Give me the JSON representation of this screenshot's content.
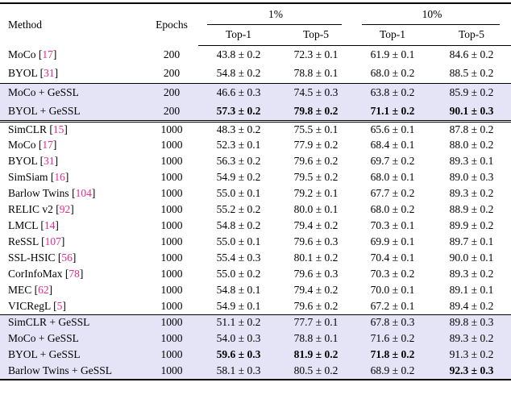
{
  "table": {
    "headers": {
      "method": "Method",
      "epochs": "Epochs",
      "groups": [
        {
          "label": "1%",
          "sub": [
            "Top-1",
            "Top-5"
          ]
        },
        {
          "label": "10%",
          "sub": [
            "Top-1",
            "Top-5"
          ]
        }
      ]
    },
    "sections": [
      {
        "highlighted": false,
        "rows": [
          {
            "method": "MoCo",
            "cite": "17",
            "epochs": "200",
            "values": [
              "43.8 ± 0.2",
              "72.3 ± 0.1",
              "61.9 ± 0.1",
              "84.6 ± 0.2"
            ],
            "bold": [
              false,
              false,
              false,
              false
            ]
          },
          {
            "method": "BYOL",
            "cite": "31",
            "epochs": "200",
            "values": [
              "54.8 ± 0.2",
              "78.8 ± 0.1",
              "68.0 ± 0.2",
              "88.5 ± 0.2"
            ],
            "bold": [
              false,
              false,
              false,
              false
            ]
          }
        ]
      },
      {
        "highlighted": true,
        "rows": [
          {
            "method": "MoCo + GeSSL",
            "cite": "",
            "epochs": "200",
            "values": [
              "46.6 ± 0.3",
              "74.5 ± 0.3",
              "63.8 ± 0.2",
              "85.9 ± 0.2"
            ],
            "bold": [
              false,
              false,
              false,
              false
            ]
          },
          {
            "method": "BYOL + GeSSL",
            "cite": "",
            "epochs": "200",
            "values": [
              "57.3 ± 0.2",
              "79.8 ± 0.2",
              "71.1 ± 0.2",
              "90.1 ± 0.3"
            ],
            "bold": [
              true,
              true,
              true,
              true
            ]
          }
        ]
      },
      {
        "highlighted": false,
        "rows": [
          {
            "method": "SimCLR",
            "cite": "15",
            "epochs": "1000",
            "values": [
              "48.3 ± 0.2",
              "75.5 ± 0.1",
              "65.6 ± 0.1",
              "87.8 ± 0.2"
            ],
            "bold": [
              false,
              false,
              false,
              false
            ]
          },
          {
            "method": "MoCo",
            "cite": "17",
            "epochs": "1000",
            "values": [
              "52.3 ± 0.1",
              "77.9 ± 0.2",
              "68.4 ± 0.1",
              "88.0 ± 0.2"
            ],
            "bold": [
              false,
              false,
              false,
              false
            ]
          },
          {
            "method": "BYOL",
            "cite": "31",
            "epochs": "1000",
            "values": [
              "56.3 ± 0.2",
              "79.6 ± 0.2",
              "69.7 ± 0.2",
              "89.3 ± 0.1"
            ],
            "bold": [
              false,
              false,
              false,
              false
            ]
          },
          {
            "method": "SimSiam",
            "cite": "16",
            "epochs": "1000",
            "values": [
              "54.9 ± 0.2",
              "79.5 ± 0.2",
              "68.0 ± 0.1",
              "89.0 ± 0.3"
            ],
            "bold": [
              false,
              false,
              false,
              false
            ]
          },
          {
            "method": "Barlow Twins",
            "cite": "104",
            "epochs": "1000",
            "values": [
              "55.0 ± 0.1",
              "79.2 ± 0.1",
              "67.7 ± 0.2",
              "89.3 ± 0.2"
            ],
            "bold": [
              false,
              false,
              false,
              false
            ]
          },
          {
            "method": "RELIC v2",
            "cite": "92",
            "epochs": "1000",
            "values": [
              "55.2 ± 0.2",
              "80.0 ± 0.1",
              "68.0 ± 0.2",
              "88.9 ± 0.2"
            ],
            "bold": [
              false,
              false,
              false,
              false
            ]
          },
          {
            "method": "LMCL",
            "cite": "14",
            "epochs": "1000",
            "values": [
              "54.8 ± 0.2",
              "79.4 ± 0.2",
              "70.3 ± 0.1",
              "89.9 ± 0.2"
            ],
            "bold": [
              false,
              false,
              false,
              false
            ]
          },
          {
            "method": "ReSSL",
            "cite": "107",
            "epochs": "1000",
            "values": [
              "55.0 ± 0.1",
              "79.6 ± 0.3",
              "69.9 ± 0.1",
              "89.7 ± 0.1"
            ],
            "bold": [
              false,
              false,
              false,
              false
            ]
          },
          {
            "method": "SSL-HSIC",
            "cite": "56",
            "epochs": "1000",
            "values": [
              "55.4 ± 0.3",
              "80.1 ± 0.2",
              "70.4 ± 0.1",
              "90.0 ± 0.1"
            ],
            "bold": [
              false,
              false,
              false,
              false
            ]
          },
          {
            "method": "CorInfoMax",
            "cite": "78",
            "epochs": "1000",
            "values": [
              "55.0 ± 0.2",
              "79.6 ± 0.3",
              "70.3 ± 0.2",
              "89.3 ± 0.2"
            ],
            "bold": [
              false,
              false,
              false,
              false
            ]
          },
          {
            "method": "MEC",
            "cite": "62",
            "epochs": "1000",
            "values": [
              "54.8 ± 0.1",
              "79.4 ± 0.2",
              "70.0 ± 0.1",
              "89.1 ± 0.1"
            ],
            "bold": [
              false,
              false,
              false,
              false
            ]
          },
          {
            "method": "VICRegL",
            "cite": "5",
            "epochs": "1000",
            "values": [
              "54.9 ± 0.1",
              "79.6 ± 0.2",
              "67.2 ± 0.1",
              "89.4 ± 0.2"
            ],
            "bold": [
              false,
              false,
              false,
              false
            ]
          }
        ]
      },
      {
        "highlighted": true,
        "rows": [
          {
            "method": "SimCLR + GeSSL",
            "cite": "",
            "epochs": "1000",
            "values": [
              "51.1 ± 0.2",
              "77.7 ± 0.1",
              "67.8 ± 0.3",
              "89.8 ± 0.3"
            ],
            "bold": [
              false,
              false,
              false,
              false
            ]
          },
          {
            "method": "MoCo + GeSSL",
            "cite": "",
            "epochs": "1000",
            "values": [
              "54.0 ± 0.3",
              "78.8 ± 0.1",
              "71.6 ± 0.2",
              "89.3 ± 0.2"
            ],
            "bold": [
              false,
              false,
              false,
              false
            ]
          },
          {
            "method": "BYOL + GeSSL",
            "cite": "",
            "epochs": "1000",
            "values": [
              "59.6 ± 0.3",
              "81.9 ± 0.2",
              "71.8 ± 0.2",
              "91.3 ± 0.2"
            ],
            "bold": [
              true,
              true,
              true,
              false
            ]
          },
          {
            "method": "Barlow Twins + GeSSL",
            "cite": "",
            "epochs": "1000",
            "values": [
              "58.1 ± 0.3",
              "80.5 ± 0.2",
              "68.9 ± 0.2",
              "92.3 ± 0.3"
            ],
            "bold": [
              false,
              false,
              false,
              true
            ]
          }
        ]
      }
    ]
  },
  "colors": {
    "highlight": "#e5e4f6",
    "citation": "#e7298a"
  }
}
